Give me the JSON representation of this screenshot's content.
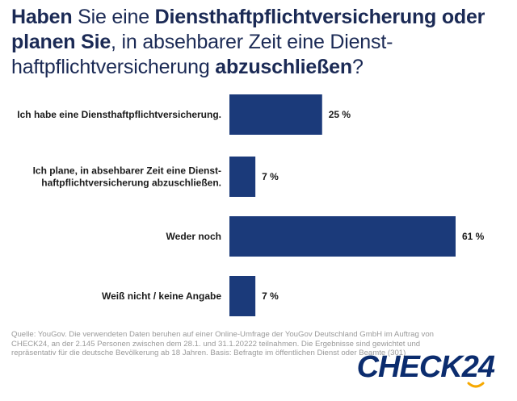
{
  "title": {
    "p1": "Haben",
    "p2": " Sie eine ",
    "p3": "Diensthaftpflichtversicherung oder planen Sie",
    "p4": ", in absehbarer Zeit eine Dienst­haftpflichtversicherung ",
    "p5": "abzuschließen",
    "p6": "?"
  },
  "chart_data": {
    "type": "bar",
    "orientation": "horizontal",
    "categories": [
      [
        "Ich habe eine Diensthaftpflichtversicherung."
      ],
      [
        "Ich plane, in absehbarer Zeit eine Dienst-",
        "haftpflichtversicherung abzuschließen."
      ],
      [
        "Weder noch"
      ],
      [
        "Weiß nicht / keine Angabe"
      ]
    ],
    "values": [
      25,
      7,
      61,
      7
    ],
    "value_labels": [
      "25 %",
      "7 %",
      "61 %",
      "7 %"
    ],
    "unit": "%",
    "xlim": [
      0,
      61
    ],
    "bar_color": "#1b3a7a",
    "title": "Haben Sie eine Diensthaftpflichtversicherung oder planen Sie, in absehbarer Zeit eine Dienst­haftpflichtversicherung abzuschließen?"
  },
  "source": "Quelle: YouGov. Die verwendeten Daten beruhen auf einer Online-Umfrage der YouGov Deutschland GmbH im Auftrag von CHECK24, an der 2.145 Personen zwischen dem 28.1. und 31.1.20222 teilnahmen. Die Ergebnisse sind gewichtet und repräsentativ für die deutsche Bevölkerung ab 18 Jahren. Basis: Befragte im öffentlichen Dienst oder Beamte (301)",
  "logo": {
    "text": "CHECK24",
    "color": "#0b2c6e"
  }
}
